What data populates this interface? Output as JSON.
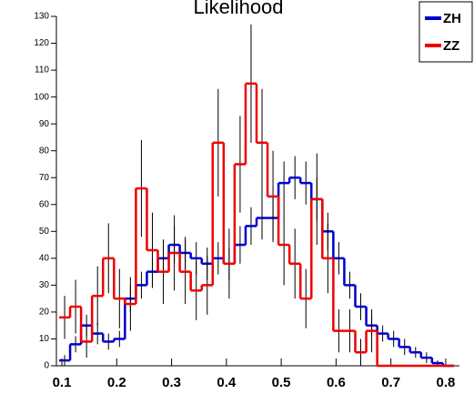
{
  "chart_data": {
    "type": "histogram",
    "title": "Likelihood",
    "bins": [
      0.095,
      0.115,
      0.135,
      0.155,
      0.175,
      0.195,
      0.215,
      0.235,
      0.255,
      0.275,
      0.295,
      0.315,
      0.335,
      0.355,
      0.375,
      0.395,
      0.415,
      0.435,
      0.455,
      0.475,
      0.495,
      0.515,
      0.535,
      0.555,
      0.575,
      0.595,
      0.615,
      0.635,
      0.655,
      0.675,
      0.695,
      0.715,
      0.735,
      0.755,
      0.775,
      0.795,
      0.815
    ],
    "series": [
      {
        "name": "ZH",
        "color": "#0000cc",
        "values": [
          2,
          8,
          15,
          12,
          9,
          10,
          25,
          30,
          35,
          40,
          45,
          42,
          40,
          38,
          40,
          38,
          45,
          52,
          55,
          55,
          68,
          70,
          68,
          62,
          50,
          40,
          30,
          22,
          15,
          12,
          10,
          7,
          5,
          3,
          1,
          0
        ],
        "errors": [
          2,
          3,
          4,
          4,
          3,
          3,
          5,
          5,
          6,
          6,
          7,
          6,
          6,
          6,
          6,
          6,
          7,
          7,
          8,
          8,
          8,
          8,
          8,
          8,
          7,
          6,
          5,
          5,
          4,
          3,
          3,
          3,
          2,
          2,
          1,
          0
        ]
      },
      {
        "name": "ZZ",
        "color": "#ee0000",
        "values": [
          18,
          22,
          9,
          26,
          40,
          25,
          23,
          66,
          43,
          35,
          42,
          35,
          28,
          30,
          83,
          38,
          75,
          105,
          83,
          63,
          45,
          38,
          25,
          62,
          40,
          13,
          13,
          5,
          13,
          0,
          0,
          0,
          0,
          0,
          0,
          0
        ],
        "errors": [
          8,
          10,
          6,
          11,
          13,
          11,
          10,
          18,
          14,
          12,
          14,
          12,
          11,
          11,
          20,
          13,
          18,
          22,
          20,
          17,
          15,
          13,
          11,
          17,
          13,
          8,
          8,
          5,
          8,
          0,
          0,
          0,
          0,
          0,
          0,
          0
        ]
      }
    ],
    "xlim": [
      0.09,
      0.825
    ],
    "xticks": [
      0.1,
      0.2,
      0.3,
      0.4,
      0.5,
      0.6,
      0.7,
      0.8
    ],
    "ylim": [
      0,
      130
    ],
    "yticks": [
      0,
      10,
      20,
      30,
      40,
      50,
      60,
      70,
      80,
      90,
      100,
      110,
      120,
      130
    ],
    "legend": "top-right"
  }
}
